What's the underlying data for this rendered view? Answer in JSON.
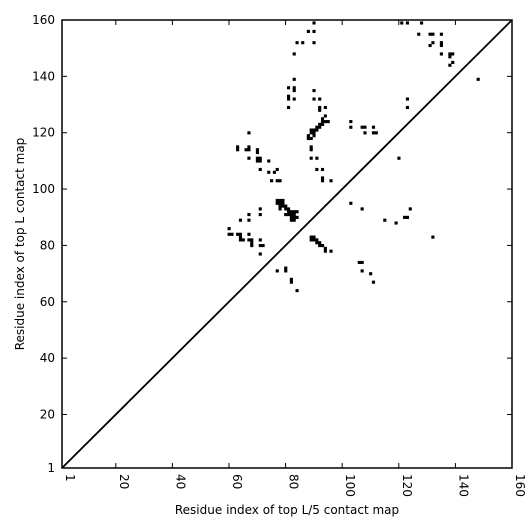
{
  "chart_data": {
    "type": "scatter",
    "xlabel": "Residue index of top L/5 contact map",
    "ylabel": "Residue index of top L contact map",
    "xlim": [
      1,
      160
    ],
    "ylim": [
      1,
      160
    ],
    "xticks": [
      1,
      20,
      40,
      60,
      80,
      100,
      120,
      140,
      160
    ],
    "yticks": [
      1,
      20,
      40,
      60,
      80,
      100,
      120,
      140,
      160
    ],
    "grid": false,
    "diagonal": true,
    "marker": "square",
    "color": "#000000",
    "points": [
      [
        84,
        152
      ],
      [
        86,
        152
      ],
      [
        83,
        148
      ],
      [
        88,
        156
      ],
      [
        90,
        156
      ],
      [
        90,
        159
      ],
      [
        90,
        152
      ],
      [
        83,
        139
      ],
      [
        83,
        136
      ],
      [
        83,
        135
      ],
      [
        81,
        136
      ],
      [
        81,
        133
      ],
      [
        83,
        132
      ],
      [
        81,
        132
      ],
      [
        81,
        129
      ],
      [
        90,
        135
      ],
      [
        90,
        132
      ],
      [
        92,
        132
      ],
      [
        92,
        129
      ],
      [
        92,
        128
      ],
      [
        94,
        129
      ],
      [
        89,
        121
      ],
      [
        89,
        120
      ],
      [
        90,
        120
      ],
      [
        90,
        121
      ],
      [
        91,
        121
      ],
      [
        91,
        122
      ],
      [
        92,
        122
      ],
      [
        92,
        123
      ],
      [
        93,
        123
      ],
      [
        93,
        124
      ],
      [
        93,
        125
      ],
      [
        94,
        124
      ],
      [
        94,
        126
      ],
      [
        95,
        124
      ],
      [
        88,
        119
      ],
      [
        89,
        118
      ],
      [
        88,
        118
      ],
      [
        90,
        119
      ],
      [
        89,
        115
      ],
      [
        89,
        114
      ],
      [
        89,
        111
      ],
      [
        91,
        111
      ],
      [
        91,
        107
      ],
      [
        93,
        107
      ],
      [
        93,
        104
      ],
      [
        93,
        103
      ],
      [
        96,
        103
      ],
      [
        103,
        124
      ],
      [
        103,
        122
      ],
      [
        107,
        122
      ],
      [
        108,
        122
      ],
      [
        108,
        120
      ],
      [
        111,
        122
      ],
      [
        111,
        120
      ],
      [
        112,
        120
      ],
      [
        120,
        111
      ],
      [
        123,
        132
      ],
      [
        123,
        129
      ],
      [
        121,
        159
      ],
      [
        123,
        159
      ],
      [
        128,
        159
      ],
      [
        127,
        155
      ],
      [
        131,
        155
      ],
      [
        132,
        155
      ],
      [
        135,
        155
      ],
      [
        131,
        151
      ],
      [
        132,
        152
      ],
      [
        135,
        152
      ],
      [
        135,
        151
      ],
      [
        135,
        148
      ],
      [
        138,
        148
      ],
      [
        139,
        148
      ],
      [
        138,
        147
      ],
      [
        139,
        145
      ],
      [
        138,
        144
      ],
      [
        148,
        139
      ],
      [
        63,
        115
      ],
      [
        63,
        114
      ],
      [
        66,
        114
      ],
      [
        67,
        114
      ],
      [
        67,
        115
      ],
      [
        67,
        111
      ],
      [
        67,
        120
      ],
      [
        70,
        114
      ],
      [
        70,
        113
      ],
      [
        70,
        111
      ],
      [
        71,
        111
      ],
      [
        70,
        110
      ],
      [
        71,
        110
      ],
      [
        71,
        107
      ],
      [
        74,
        110
      ],
      [
        74,
        106
      ],
      [
        76,
        106
      ],
      [
        77,
        107
      ],
      [
        75,
        103
      ],
      [
        77,
        103
      ],
      [
        78,
        103
      ],
      [
        77,
        96
      ],
      [
        78,
        96
      ],
      [
        79,
        96
      ],
      [
        77,
        95
      ],
      [
        78,
        95
      ],
      [
        79,
        95
      ],
      [
        78,
        94
      ],
      [
        79,
        94
      ],
      [
        80,
        94
      ],
      [
        80,
        93
      ],
      [
        81,
        93
      ],
      [
        81,
        92
      ],
      [
        82,
        92
      ],
      [
        82,
        91
      ],
      [
        83,
        91
      ],
      [
        83,
        90
      ],
      [
        83,
        89
      ],
      [
        82,
        89
      ],
      [
        84,
        90
      ],
      [
        80,
        91
      ],
      [
        81,
        91
      ],
      [
        84,
        92
      ],
      [
        83,
        92
      ],
      [
        78,
        93
      ],
      [
        82,
        90
      ],
      [
        103,
        95
      ],
      [
        107,
        93
      ],
      [
        124,
        93
      ],
      [
        115,
        89
      ],
      [
        119,
        88
      ],
      [
        122,
        90
      ],
      [
        123,
        90
      ],
      [
        60,
        86
      ],
      [
        60,
        84
      ],
      [
        61,
        84
      ],
      [
        63,
        84
      ],
      [
        64,
        84
      ],
      [
        64,
        83
      ],
      [
        64,
        82
      ],
      [
        65,
        82
      ],
      [
        67,
        84
      ],
      [
        67,
        82
      ],
      [
        68,
        82
      ],
      [
        68,
        81
      ],
      [
        68,
        80
      ],
      [
        67,
        91
      ],
      [
        67,
        89
      ],
      [
        64,
        89
      ],
      [
        71,
        93
      ],
      [
        71,
        91
      ],
      [
        71,
        82
      ],
      [
        71,
        80
      ],
      [
        72,
        80
      ],
      [
        71,
        77
      ],
      [
        89,
        83
      ],
      [
        90,
        83
      ],
      [
        89,
        82
      ],
      [
        90,
        82
      ],
      [
        91,
        82
      ],
      [
        91,
        81
      ],
      [
        92,
        81
      ],
      [
        92,
        80
      ],
      [
        93,
        80
      ],
      [
        94,
        79
      ],
      [
        94,
        78
      ],
      [
        96,
        78
      ],
      [
        107,
        74
      ],
      [
        106,
        74
      ],
      [
        107,
        71
      ],
      [
        110,
        70
      ],
      [
        111,
        67
      ],
      [
        77,
        71
      ],
      [
        80,
        72
      ],
      [
        80,
        71
      ],
      [
        82,
        68
      ],
      [
        82,
        67
      ],
      [
        84,
        64
      ],
      [
        132,
        83
      ]
    ]
  }
}
